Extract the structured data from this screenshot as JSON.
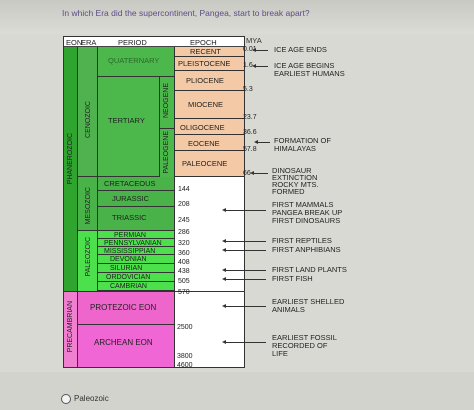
{
  "question": "In which Era did the supercontinent, Pangea, start to break apart?",
  "headers": {
    "eon": "EON",
    "era": "ERA",
    "period": "PERIOD",
    "epoch": "EPOCH",
    "mya": "MYA"
  },
  "eons": {
    "phanerozoic": "PHANEROZOIC",
    "proterozoic": "PROTEZOIC EON",
    "archean": "ARCHEAN EON",
    "precambrian": "PRECAMBRIAN"
  },
  "eras": {
    "cenozoic": "CENOZOIC",
    "mesozoic": "MESOZOIC",
    "paleozoic": "PALEOZOIC"
  },
  "subperiods": {
    "neogene": "NEOGENE",
    "paleogene": "PALEOGENE"
  },
  "periods": {
    "quaternary": "QUATERNARY",
    "tertiary": "TERTIARY",
    "cretaceous": "CRETACEOUS",
    "jurassic": "JURASSIC",
    "triassic": "TRIASSIC",
    "permian": "PERMIAN",
    "pennsylvanian": "PENNSYLVANIAN",
    "mississippian": "MISSISSIPPIAN",
    "devonian": "DEVONIAN",
    "silurian": "SILURIAN",
    "ordovician": "ORDOVICIAN",
    "cambrian": "CAMBRIAN"
  },
  "epochs": {
    "recent": "RECENT",
    "pleistocene": "PLEISTOCENE",
    "pliocene": "PLIOCENE",
    "miocene": "MIOCENE",
    "oligocene": "OLIGOCENE",
    "eocene": "EOCENE",
    "paleocene": "PALEOCENE"
  },
  "mya": {
    "m001": "0.01",
    "m16": "1.6",
    "m53": "5.3",
    "m237": "23.7",
    "m366": "36.6",
    "m578": "57.8",
    "m66": "66",
    "m144": "144",
    "m208": "208",
    "m245": "245",
    "m286": "286",
    "m320": "320",
    "m360": "360",
    "m408": "408",
    "m438": "438",
    "m505": "505",
    "m570": "570",
    "m2500": "2500",
    "m3800": "3800",
    "m4600": "4600"
  },
  "events": {
    "ice_age_ends": "ICE AGE ENDS",
    "ice_age_begins_1": "ICE AGE BEGINS",
    "ice_age_begins_2": "EARLIEST HUMANS",
    "himalayas_1": "FORMATION OF",
    "himalayas_2": "HIMALAYAS",
    "dino_1": "DINOSAUR",
    "dino_2": "EXTINCTION",
    "dino_3": "ROCKY MTS.",
    "dino_4": "FORMED",
    "mammals_1": "FIRST MAMMALS",
    "mammals_2": "PANGEA BREAK UP",
    "mammals_3": "FIRST DINOSAURS",
    "reptiles_1": "FIRST REPTILES",
    "reptiles_2": "FIRST ANPHIBIANS",
    "plants_1": "FIRST LAND PLANTS",
    "plants_2": "FIRST FISH",
    "shelled_1": "EARLIEST SHELLED",
    "shelled_2": "ANIMALS",
    "fossil_1": "EARLIEST FOSSIL",
    "fossil_2": "RECORDED OF",
    "fossil_3": "LIFE"
  },
  "answer_option": "Paleozoic",
  "colors": {
    "phanerozoic": "#2fa42f",
    "cenozoic": "#4fb24f",
    "mesozoic": "#49b249",
    "quaternary": "#4cb84c",
    "epoch": "#f4c9a6",
    "green_bright": "#4ce04c",
    "proterozoic": "#ee66cc",
    "archean": "#ef66d4"
  }
}
